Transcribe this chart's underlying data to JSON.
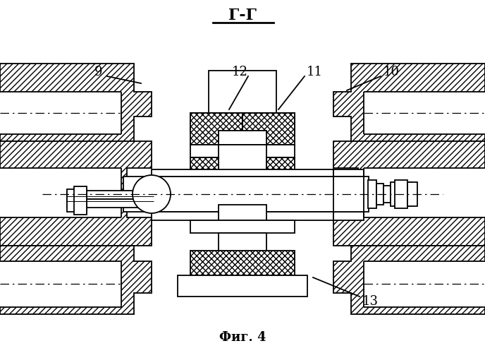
{
  "title": "Г-Г",
  "fig_label": "Фиг. 4",
  "bg_color": "#ffffff",
  "lw": 1.3,
  "lw_thin": 0.7
}
